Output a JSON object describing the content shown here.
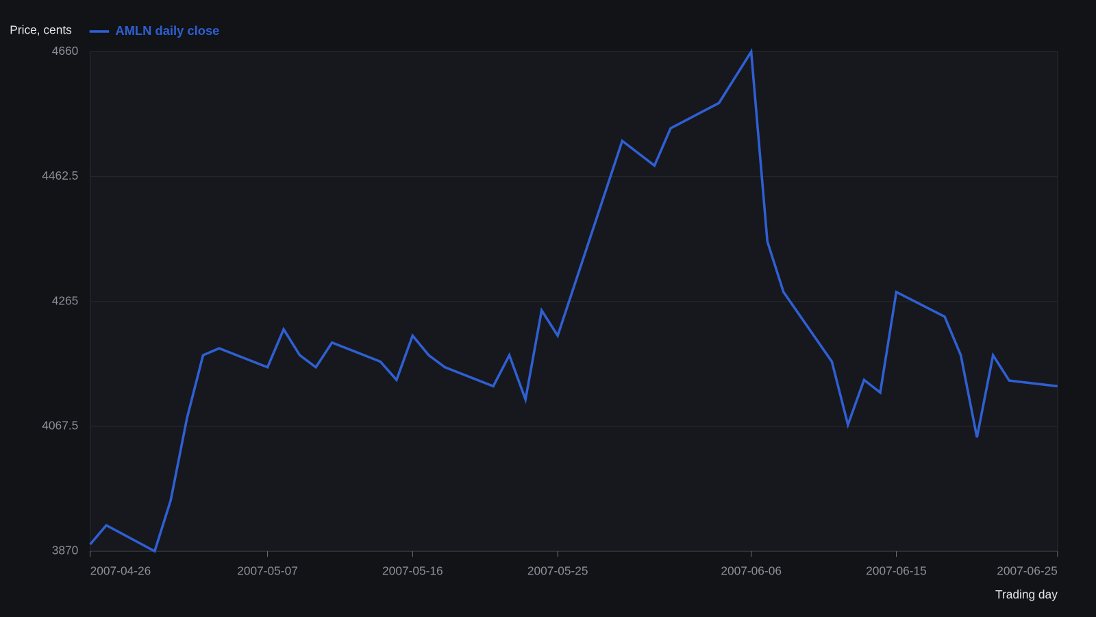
{
  "chart_data": {
    "type": "line",
    "y_label": "Price, cents",
    "x_label": "Trading day",
    "x": [
      "2007-04-26",
      "2007-04-27",
      "2007-04-30",
      "2007-05-01",
      "2007-05-02",
      "2007-05-03",
      "2007-05-04",
      "2007-05-07",
      "2007-05-08",
      "2007-05-09",
      "2007-05-10",
      "2007-05-11",
      "2007-05-14",
      "2007-05-15",
      "2007-05-16",
      "2007-05-17",
      "2007-05-18",
      "2007-05-21",
      "2007-05-22",
      "2007-05-23",
      "2007-05-24",
      "2007-05-25",
      "2007-05-29",
      "2007-05-31",
      "2007-06-01",
      "2007-06-04",
      "2007-06-06",
      "2007-06-07",
      "2007-06-08",
      "2007-06-11",
      "2007-06-12",
      "2007-06-13",
      "2007-06-14",
      "2007-06-15",
      "2007-06-18",
      "2007-06-19",
      "2007-06-20",
      "2007-06-21",
      "2007-06-22",
      "2007-06-25"
    ],
    "series": [
      {
        "name": "AMLN daily close",
        "color": "#2f5fd3",
        "values": [
          3881,
          3911,
          3870,
          3951,
          4080,
          4180,
          4191,
          4161,
          4221,
          4180,
          4161,
          4200,
          4170,
          4141,
          4211,
          4180,
          4161,
          4131,
          4180,
          4110,
          4251,
          4211,
          4519,
          4480,
          4539,
          4579,
          4660,
          4360,
          4280,
          4170,
          4070,
          4141,
          4121,
          4280,
          4241,
          4180,
          4050,
          4180,
          4140,
          4131
        ]
      }
    ],
    "xlim": [
      "2007-04-26",
      "2007-06-25"
    ],
    "xticks": [
      "2007-04-26",
      "2007-05-07",
      "2007-05-16",
      "2007-05-25",
      "2007-06-06",
      "2007-06-15",
      "2007-06-25"
    ],
    "ylim": [
      3870,
      4660
    ],
    "yticks": [
      3870,
      4067.5,
      4265,
      4462.5,
      4660
    ],
    "grid": true,
    "legend": "top-left"
  }
}
